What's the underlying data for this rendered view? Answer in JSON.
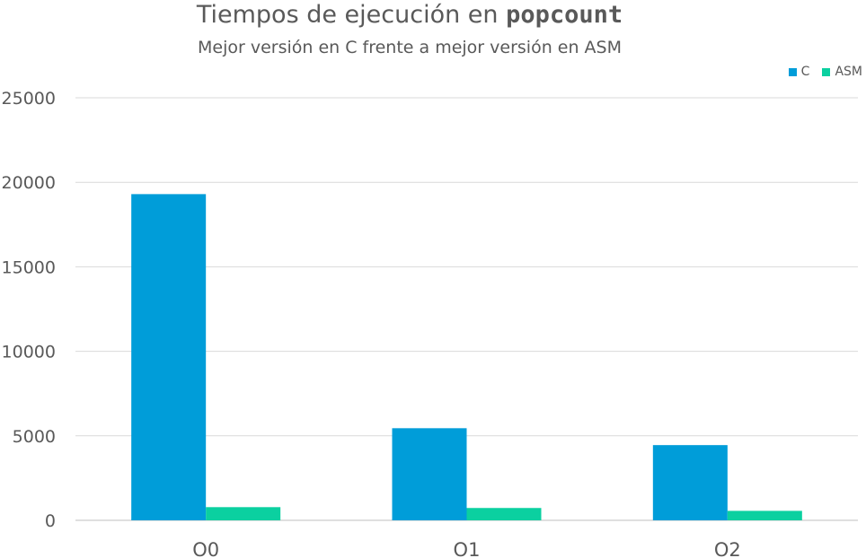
{
  "chart_data": {
    "type": "bar",
    "title_prefix": "Tiempos de ejecución en ",
    "title_code": "popcount",
    "subtitle": "Mejor versión en C frente a mejor versión en ASM",
    "categories": [
      "O0",
      "O1",
      "O2"
    ],
    "series": [
      {
        "name": "C",
        "color": "#009DD9",
        "values": [
          19300,
          5450,
          4450
        ]
      },
      {
        "name": "ASM",
        "color": "#0BD0A0",
        "values": [
          780,
          730,
          560
        ]
      }
    ],
    "ylim": [
      0,
      25000
    ],
    "yticks": [
      "0",
      "5000",
      "10000",
      "15000",
      "20000",
      "25000"
    ],
    "grid": true,
    "legend_position": "top-right"
  }
}
